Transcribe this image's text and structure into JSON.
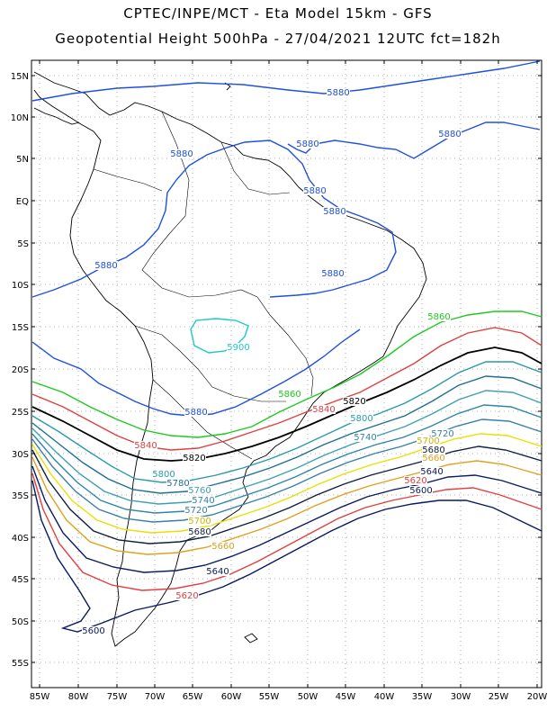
{
  "header": {
    "line1": "CPTEC/INPE/MCT -  Eta Model 15km - GFS",
    "line2": "Geopotential Height 500hPa - 27/04/2021 12UTC fct=182h"
  },
  "axes": {
    "lat_labels": [
      "15N",
      "10N",
      "5N",
      "EQ",
      "5S",
      "10S",
      "15S",
      "20S",
      "25S",
      "30S",
      "35S",
      "40S",
      "45S",
      "50S",
      "55S"
    ],
    "lon_labels": [
      "85W",
      "80W",
      "75W",
      "70W",
      "65W",
      "60W",
      "55W",
      "50W",
      "45W",
      "40W",
      "35W",
      "30W",
      "25W",
      "20W"
    ]
  },
  "contours": [
    {
      "level": "5900",
      "color": "#20c8c8"
    },
    {
      "level": "5880",
      "color": "#2050e0"
    },
    {
      "level": "5860",
      "color": "#20c820"
    },
    {
      "level": "5840",
      "color": "#e04040"
    },
    {
      "level": "5820",
      "color": "#000000"
    },
    {
      "level": "5800",
      "color": "#2a9aaa"
    },
    {
      "level": "5780",
      "color": "#1f6f90"
    },
    {
      "level": "5760",
      "color": "#40a0b0"
    },
    {
      "level": "5740",
      "color": "#2f86a8"
    },
    {
      "level": "5720",
      "color": "#3a7fa8"
    },
    {
      "level": "5700",
      "color": "#e8e000"
    },
    {
      "level": "5680",
      "color": "#102040"
    },
    {
      "level": "5660",
      "color": "#e0a020"
    },
    {
      "level": "5640",
      "color": "#0a1a60"
    },
    {
      "level": "5620",
      "color": "#e04040"
    },
    {
      "level": "5600",
      "color": "#0a1a60"
    }
  ],
  "contour_labels": [
    {
      "text": "5880",
      "color": "#2050e0"
    },
    {
      "text": "5880",
      "color": "#2050e0"
    },
    {
      "text": "5880",
      "color": "#2050e0"
    },
    {
      "text": "5880",
      "color": "#2050e0"
    },
    {
      "text": "5880",
      "color": "#2050e0"
    },
    {
      "text": "5880",
      "color": "#2050e0"
    },
    {
      "text": "5880",
      "color": "#2050e0"
    },
    {
      "text": "5880",
      "color": "#2050e0"
    },
    {
      "text": "5880",
      "color": "#2050e0"
    },
    {
      "text": "5900",
      "color": "#20c8c8"
    },
    {
      "text": "5860",
      "color": "#20c820"
    },
    {
      "text": "5860",
      "color": "#20c820"
    },
    {
      "text": "5840",
      "color": "#e04040"
    },
    {
      "text": "5840",
      "color": "#e04040"
    },
    {
      "text": "5820",
      "color": "#000000"
    },
    {
      "text": "5820",
      "color": "#000000"
    },
    {
      "text": "5800",
      "color": "#2a9aaa"
    },
    {
      "text": "5800",
      "color": "#2a9aaa"
    },
    {
      "text": "5780",
      "color": "#1f6f90"
    },
    {
      "text": "5760",
      "color": "#40a0b0"
    },
    {
      "text": "5740",
      "color": "#2f86a8"
    },
    {
      "text": "5740",
      "color": "#2f86a8"
    },
    {
      "text": "5720",
      "color": "#3a7fa8"
    },
    {
      "text": "5720",
      "color": "#3a7fa8"
    },
    {
      "text": "5700",
      "color": "#c8b800"
    },
    {
      "text": "5700",
      "color": "#c8b800"
    },
    {
      "text": "5680",
      "color": "#102040"
    },
    {
      "text": "5680",
      "color": "#102040"
    },
    {
      "text": "5660",
      "color": "#e0a020"
    },
    {
      "text": "5660",
      "color": "#e0a020"
    },
    {
      "text": "5640",
      "color": "#0a1a60"
    },
    {
      "text": "5640",
      "color": "#0a1a60"
    },
    {
      "text": "5620",
      "color": "#e04040"
    },
    {
      "text": "5620",
      "color": "#e04040"
    },
    {
      "text": "5600",
      "color": "#0a1a60"
    },
    {
      "text": "5600",
      "color": "#0a1a60"
    }
  ]
}
